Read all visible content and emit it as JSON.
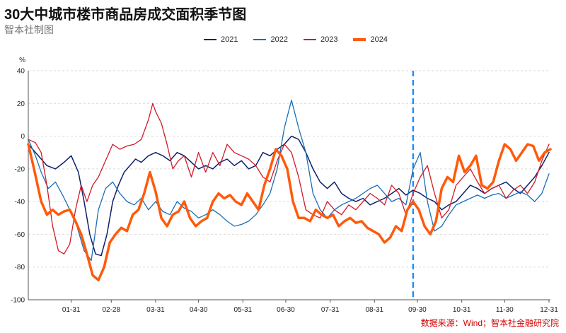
{
  "title": "30大中城市楼市商品房成交面积季节图",
  "subtitle": "智本社制图",
  "source": "数据来源：Wind；智本社金融研究院",
  "chart_data": {
    "type": "line",
    "ylabel": "%",
    "ylim": [
      -100,
      40
    ],
    "yticks": [
      -100,
      -80,
      -60,
      -40,
      -20,
      0,
      20,
      40
    ],
    "xlim": [
      1,
      366
    ],
    "xticks": [
      {
        "label": "01-31",
        "day": 31
      },
      {
        "label": "02-28",
        "day": 59
      },
      {
        "label": "03-31",
        "day": 90
      },
      {
        "label": "04-30",
        "day": 120
      },
      {
        "label": "05-31",
        "day": 151
      },
      {
        "label": "06-30",
        "day": 181
      },
      {
        "label": "07-31",
        "day": 212
      },
      {
        "label": "08-31",
        "day": 243
      },
      {
        "label": "09-30",
        "day": 273
      },
      {
        "label": "10-31",
        "day": 304
      },
      {
        "label": "11-30",
        "day": 334
      },
      {
        "label": "12-31",
        "day": 365
      }
    ],
    "reference_line_day": 270,
    "series": [
      {
        "name": "2021",
        "color": "#0d1f6b",
        "width": 1.5,
        "x": [
          1,
          8,
          14,
          20,
          26,
          31,
          36,
          40,
          44,
          48,
          52,
          56,
          60,
          64,
          68,
          72,
          76,
          80,
          85,
          90,
          95,
          100,
          105,
          110,
          115,
          120,
          125,
          130,
          135,
          140,
          145,
          150,
          155,
          160,
          165,
          170,
          175,
          180,
          185,
          190,
          195,
          200,
          205,
          210,
          215,
          220,
          225,
          230,
          235,
          240,
          245,
          250,
          255,
          260,
          265,
          270,
          275,
          280,
          285,
          290,
          295,
          300,
          305,
          310,
          315,
          320,
          325,
          330,
          335,
          340,
          345,
          350,
          355,
          360,
          365
        ],
        "y": [
          -5,
          -12,
          -18,
          -20,
          -16,
          -12,
          -22,
          -40,
          -60,
          -72,
          -73,
          -60,
          -40,
          -30,
          -22,
          -18,
          -14,
          -16,
          -12,
          -10,
          -12,
          -15,
          -10,
          -12,
          -16,
          -20,
          -18,
          -20,
          -16,
          -14,
          -18,
          -15,
          -20,
          -18,
          -10,
          -12,
          -8,
          -5,
          0,
          -2,
          -10,
          -20,
          -28,
          -32,
          -28,
          -35,
          -38,
          -40,
          -38,
          -42,
          -40,
          -38,
          -35,
          -32,
          -36,
          -33,
          -35,
          -38,
          -40,
          -45,
          -42,
          -40,
          -35,
          -30,
          -32,
          -35,
          -32,
          -30,
          -28,
          -32,
          -35,
          -30,
          -25,
          -18,
          -10
        ]
      },
      {
        "name": "2022",
        "color": "#1a6eb5",
        "width": 1.3,
        "x": [
          1,
          6,
          10,
          15,
          20,
          25,
          30,
          35,
          40,
          45,
          50,
          55,
          60,
          65,
          70,
          75,
          80,
          85,
          90,
          95,
          100,
          105,
          110,
          115,
          120,
          125,
          130,
          135,
          140,
          145,
          150,
          155,
          160,
          165,
          170,
          175,
          180,
          185,
          190,
          195,
          200,
          205,
          210,
          215,
          220,
          225,
          230,
          235,
          240,
          245,
          250,
          255,
          260,
          265,
          270,
          275,
          280,
          285,
          290,
          295,
          300,
          305,
          310,
          315,
          320,
          325,
          330,
          335,
          340,
          345,
          350,
          355,
          360,
          365
        ],
        "y": [
          -2,
          -12,
          -22,
          -32,
          -28,
          -36,
          -45,
          -55,
          -70,
          -76,
          -45,
          -32,
          -28,
          -35,
          -40,
          -42,
          -38,
          -45,
          -40,
          -46,
          -48,
          -40,
          -44,
          -46,
          -50,
          -48,
          -45,
          -48,
          -52,
          -55,
          -54,
          -52,
          -48,
          -42,
          -35,
          -20,
          5,
          22,
          5,
          -10,
          -35,
          -45,
          -50,
          -45,
          -42,
          -40,
          -38,
          -35,
          -32,
          -30,
          -35,
          -40,
          -38,
          -42,
          -20,
          -10,
          -40,
          -58,
          -55,
          -48,
          -42,
          -40,
          -38,
          -36,
          -38,
          -36,
          -35,
          -38,
          -36,
          -34,
          -36,
          -40,
          -35,
          -23
        ]
      },
      {
        "name": "2023",
        "color": "#d11a2a",
        "width": 1.3,
        "x": [
          1,
          6,
          10,
          14,
          18,
          22,
          26,
          30,
          34,
          38,
          42,
          46,
          50,
          55,
          60,
          65,
          70,
          75,
          80,
          85,
          88,
          90,
          94,
          98,
          102,
          106,
          110,
          115,
          120,
          125,
          130,
          135,
          140,
          145,
          150,
          155,
          160,
          165,
          170,
          175,
          180,
          185,
          190,
          195,
          200,
          205,
          210,
          215,
          220,
          225,
          230,
          235,
          240,
          245,
          250,
          255,
          260,
          265,
          270,
          275,
          280,
          285,
          290,
          295,
          300,
          305,
          310,
          315,
          320,
          325,
          330,
          335,
          340,
          345,
          350,
          355,
          360,
          365
        ],
        "y": [
          -2,
          -4,
          -10,
          -30,
          -55,
          -70,
          -72,
          -66,
          -45,
          -30,
          -40,
          -30,
          -25,
          -15,
          -5,
          -8,
          -6,
          -5,
          -2,
          10,
          20,
          15,
          8,
          -5,
          -20,
          -15,
          -12,
          -25,
          -10,
          -22,
          -10,
          -18,
          -5,
          -10,
          -12,
          -14,
          -18,
          -25,
          -28,
          -15,
          -5,
          -10,
          -25,
          -45,
          -48,
          -50,
          -40,
          -45,
          -48,
          -42,
          -45,
          -40,
          -35,
          -38,
          -42,
          -30,
          -35,
          -48,
          -35,
          -25,
          -18,
          -35,
          -50,
          -45,
          -30,
          -25,
          -20,
          -28,
          -35,
          -32,
          -30,
          -38,
          -33,
          -30,
          -35,
          -28,
          -15,
          -5
        ]
      },
      {
        "name": "2024",
        "color": "#ff5a0a",
        "width": 3.5,
        "x": [
          1,
          5,
          10,
          14,
          18,
          22,
          26,
          30,
          34,
          38,
          42,
          46,
          50,
          54,
          58,
          62,
          66,
          70,
          74,
          78,
          82,
          86,
          90,
          94,
          98,
          102,
          106,
          110,
          114,
          118,
          122,
          126,
          130,
          134,
          138,
          142,
          146,
          150,
          154,
          158,
          162,
          166,
          170,
          174,
          178,
          182,
          186,
          190,
          194,
          198,
          202,
          206,
          210,
          214,
          218,
          222,
          226,
          230,
          234,
          238,
          242,
          246,
          250,
          254,
          258,
          262,
          266,
          270,
          274,
          278,
          282,
          286,
          290,
          294,
          298,
          302,
          306,
          310,
          314,
          318,
          322,
          326,
          330,
          334,
          338,
          342,
          346,
          350,
          354,
          358,
          362,
          366
        ],
        "y": [
          -5,
          -20,
          -40,
          -48,
          -45,
          -48,
          -46,
          -45,
          -52,
          -60,
          -72,
          -85,
          -88,
          -80,
          -65,
          -60,
          -56,
          -58,
          -48,
          -45,
          -35,
          -22,
          -34,
          -50,
          -55,
          -48,
          -46,
          -40,
          -50,
          -55,
          -52,
          -50,
          -40,
          -35,
          -38,
          -36,
          -40,
          -42,
          -35,
          -40,
          -45,
          -30,
          -20,
          -8,
          -12,
          -20,
          -40,
          -50,
          -50,
          -52,
          -45,
          -48,
          -50,
          -48,
          -55,
          -52,
          -50,
          -53,
          -52,
          -56,
          -58,
          -60,
          -65,
          -62,
          -55,
          -58,
          -45,
          -40,
          -45,
          -55,
          -60,
          -52,
          -32,
          -25,
          -28,
          -12,
          -22,
          -18,
          -12,
          -30,
          -32,
          -28,
          -15,
          -5,
          -8,
          -15,
          -10,
          -5,
          -6,
          -15,
          -10,
          -8
        ]
      }
    ]
  }
}
